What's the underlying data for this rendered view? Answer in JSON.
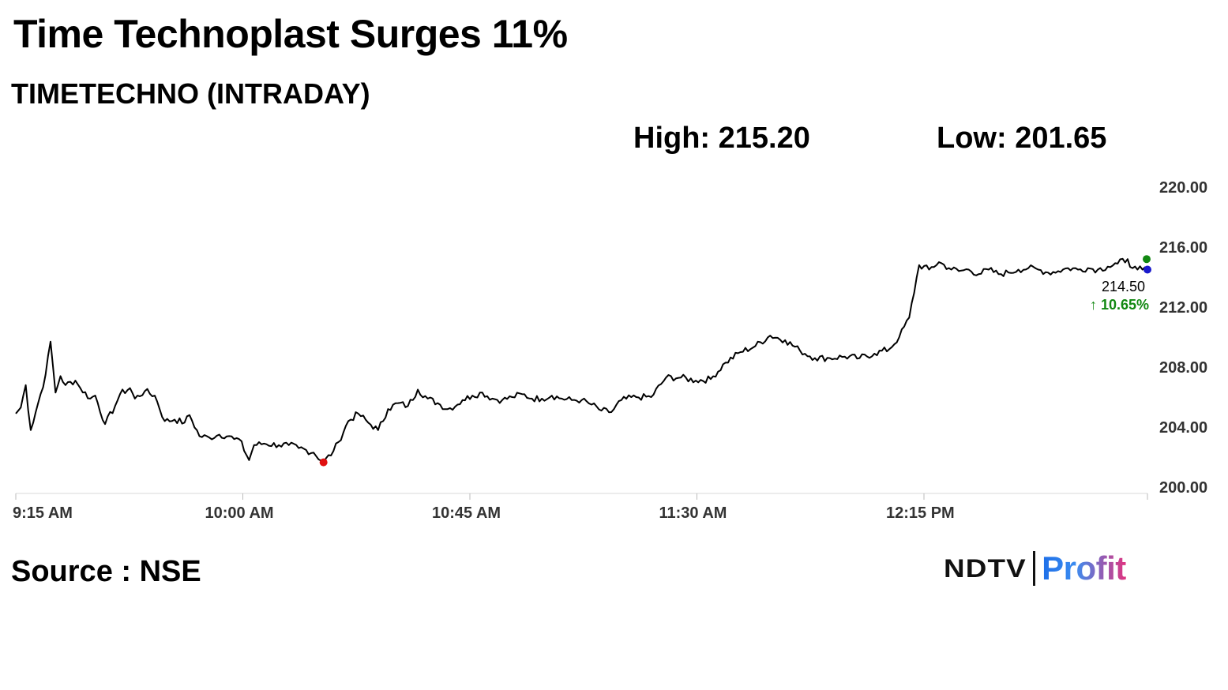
{
  "header": {
    "title": "Time Technoplast Surges 11%",
    "subtitle": "TIMETECHNO (INTRADAY)",
    "high_label": "High: ",
    "high_value": "215.20",
    "low_label": "Low: ",
    "low_value": "201.65"
  },
  "footer": {
    "source": "Source : NSE",
    "logo_ndtv": "NDTV",
    "logo_profit": "Profit"
  },
  "colors": {
    "line": "#000000",
    "low_marker": "#e01010",
    "high_marker": "#118811",
    "last_marker": "#1a1acc",
    "change": "#118811"
  },
  "chart_data": {
    "type": "line",
    "title": "TIMETECHNO (INTRADAY)",
    "xlabel": "",
    "ylabel": "",
    "x_ticks": [
      "9:15 AM",
      "10:00 AM",
      "10:45 AM",
      "11:30 AM",
      "12:15 PM"
    ],
    "y_ticks": [
      "200.00",
      "204.00",
      "208.00",
      "212.00",
      "216.00",
      "220.00"
    ],
    "ylim": [
      200,
      220
    ],
    "xlim": [
      "09:15",
      "13:03"
    ],
    "y_axis_side": "right",
    "grid": false,
    "last_value": "214.50",
    "change_label": "10.65%",
    "high": 215.2,
    "low": 201.65,
    "series": [
      {
        "x": [
          "09:15",
          "09:16",
          "09:17",
          "09:18",
          "09:20",
          "09:21",
          "09:22",
          "09:23",
          "09:24",
          "09:25",
          "09:27",
          "09:28",
          "09:30",
          "09:31",
          "09:33",
          "09:35",
          "09:36",
          "09:38",
          "09:39",
          "09:41",
          "09:43",
          "09:45",
          "09:47",
          "09:49",
          "09:50",
          "09:52",
          "09:54",
          "09:56",
          "09:58",
          "09:59",
          "10:00",
          "10:02",
          "10:03",
          "10:05",
          "10:08",
          "10:10",
          "10:12",
          "10:15",
          "10:17",
          "10:19",
          "10:20",
          "10:22",
          "10:24",
          "10:26",
          "10:28",
          "10:30",
          "10:32",
          "10:34",
          "10:36",
          "10:38",
          "10:40",
          "10:42",
          "10:44",
          "10:45",
          "10:47",
          "10:49",
          "10:51",
          "10:53",
          "10:55",
          "10:57",
          "10:59",
          "11:01",
          "11:03",
          "11:05",
          "11:07",
          "11:09",
          "11:11",
          "11:13",
          "11:15",
          "11:17",
          "11:20",
          "11:23",
          "11:26",
          "11:29",
          "11:32",
          "11:35",
          "11:38",
          "11:41",
          "11:44",
          "11:47",
          "11:50",
          "11:53",
          "11:56",
          "11:59",
          "12:02",
          "12:05",
          "12:08",
          "12:11",
          "12:13",
          "12:15",
          "12:17",
          "12:19",
          "12:21",
          "12:23",
          "12:25",
          "12:27",
          "12:29",
          "12:31",
          "12:33",
          "12:35",
          "12:37",
          "12:39",
          "12:41",
          "12:43",
          "12:45",
          "12:47",
          "12:49",
          "12:51",
          "12:53",
          "12:55",
          "12:57",
          "12:59",
          "13:00",
          "13:01",
          "13:02",
          "13:03"
        ],
        "y": [
          204.9,
          205.3,
          206.8,
          203.8,
          206.2,
          207.5,
          209.7,
          206.3,
          207.4,
          206.8,
          207.1,
          206.6,
          205.9,
          206.1,
          204.2,
          205.4,
          206.2,
          206.6,
          205.9,
          206.4,
          206.1,
          204.4,
          204.5,
          204.3,
          204.8,
          203.4,
          203.3,
          203.5,
          203.4,
          203.2,
          203.2,
          201.8,
          202.8,
          202.9,
          202.8,
          202.8,
          202.6,
          202.3,
          201.65,
          202.4,
          203.0,
          204.4,
          204.9,
          204.3,
          203.8,
          205.2,
          205.6,
          205.4,
          206.5,
          205.9,
          205.6,
          205.2,
          205.5,
          205.8,
          206.1,
          206.3,
          205.9,
          205.8,
          206.0,
          206.2,
          205.9,
          205.9,
          206.1,
          205.9,
          205.8,
          205.8,
          205.5,
          205.1,
          205.0,
          205.8,
          206.0,
          206.0,
          207.3,
          207.3,
          207.1,
          207.2,
          208.3,
          209.0,
          209.4,
          210.1,
          209.8,
          209.1,
          208.6,
          208.6,
          208.7,
          208.6,
          208.9,
          209.2,
          210.0,
          211.3,
          214.8,
          214.5,
          215.0,
          214.6,
          214.4,
          214.5,
          214.2,
          214.5,
          214.2,
          214.3,
          214.5,
          214.6,
          214.5,
          214.3,
          214.4,
          214.6,
          214.5,
          214.6,
          214.5,
          214.7,
          214.9,
          215.2,
          214.6,
          214.5,
          214.5,
          214.5
        ]
      }
    ]
  }
}
